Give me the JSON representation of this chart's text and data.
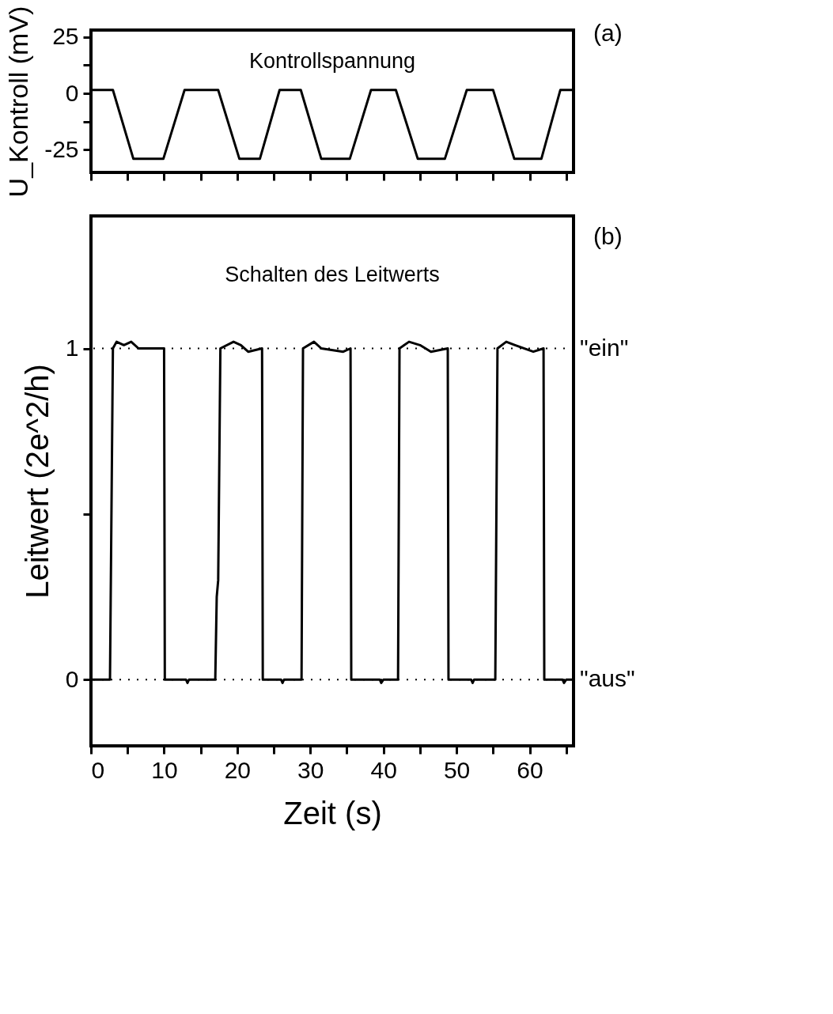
{
  "chart_data": [
    {
      "type": "line",
      "title": "Kontrollspannung",
      "ylabel": "U_Kontroll (mV)",
      "annotations": [
        "(a)"
      ],
      "xlim": [
        0,
        66
      ],
      "ylim": [
        -35,
        28
      ],
      "tick_labels": "y",
      "xticks": [
        0,
        {
          "value": 5,
          "label": null
        },
        {
          "value": 10,
          "label": null
        },
        {
          "value": 15,
          "label": null
        },
        {
          "value": 20,
          "label": null
        },
        {
          "value": 25,
          "label": null
        },
        {
          "value": 30,
          "label": null
        },
        {
          "value": 35,
          "label": null
        },
        {
          "value": 40,
          "label": null
        },
        {
          "value": 45,
          "label": null
        },
        {
          "value": 50,
          "label": null
        },
        {
          "value": 55,
          "label": null
        },
        {
          "value": 60,
          "label": null
        },
        {
          "value": 65,
          "label": null
        }
      ],
      "yticks": [
        -25,
        {
          "value": -12.5,
          "label": null
        },
        0,
        {
          "value": 12.5,
          "label": null
        },
        25
      ],
      "series": [
        {
          "color": "#000000",
          "x": [
            0,
            3.0,
            5.8,
            9.9,
            12.8,
            17.4,
            20.3,
            23.1,
            25.8,
            28.7,
            31.5,
            35.4,
            38.3,
            41.7,
            44.7,
            48.4,
            51.4,
            55.0,
            57.9,
            61.6,
            64.2,
            66
          ],
          "values": [
            1.5,
            1.5,
            -29,
            -29,
            1.5,
            1.5,
            -29,
            -29,
            1.5,
            1.5,
            -29,
            -29,
            1.5,
            1.5,
            -29,
            -29,
            1.5,
            1.5,
            -29,
            -29,
            1.5,
            1.5
          ]
        }
      ]
    },
    {
      "type": "line",
      "title": "Schalten des Leitwerts",
      "ylabel": "Leitwert (2e^2/h)",
      "xlabel": "Zeit (s)",
      "annotations": [
        "(b)"
      ],
      "xlim": [
        0,
        66
      ],
      "ylim": [
        -0.2,
        1.4
      ],
      "xticks": [
        0,
        {
          "value": 5,
          "label": null
        },
        10,
        {
          "value": 15,
          "label": null
        },
        20,
        {
          "value": 25,
          "label": null
        },
        30,
        {
          "value": 35,
          "label": null
        },
        40,
        {
          "value": 45,
          "label": null
        },
        50,
        {
          "value": 55,
          "label": null
        },
        60,
        {
          "value": 65,
          "label": null
        }
      ],
      "yticks": [
        0,
        {
          "value": 0.5,
          "label": null
        },
        1
      ],
      "ref_lines": [
        {
          "axis": "y",
          "value": 1,
          "label": "\"ein\"",
          "line_style": "dotted"
        },
        {
          "axis": "y",
          "value": 0,
          "label": "\"aus\"",
          "line_style": "dotted"
        }
      ],
      "series": [
        {
          "color": "#000000",
          "x": [
            0,
            2.6,
            2.8,
            3.0,
            3.5,
            4.5,
            5.5,
            6.5,
            10.0,
            10.1,
            13.0,
            13.2,
            13.4,
            17.0,
            17.2,
            17.4,
            17.7,
            19.5,
            20.5,
            21.5,
            23.4,
            23.5,
            26.0,
            26.2,
            26.4,
            28.8,
            29.0,
            30.5,
            31.5,
            34.5,
            35.5,
            35.6,
            39.5,
            39.7,
            40.0,
            42.0,
            42.2,
            43.5,
            45.0,
            46.5,
            48.8,
            48.9,
            52.0,
            52.2,
            52.4,
            55.3,
            55.6,
            56.8,
            58.0,
            60.5,
            61.9,
            62.0,
            64.5,
            64.7,
            65.0,
            66
          ],
          "values": [
            0,
            0,
            0.5,
            1,
            1.02,
            1.01,
            1.02,
            1,
            1,
            0,
            0,
            -0.01,
            0,
            0,
            0.25,
            0.3,
            1,
            1.02,
            1.01,
            0.99,
            1,
            0,
            0,
            -0.01,
            0,
            0,
            1,
            1.02,
            1,
            0.99,
            1,
            0,
            0,
            -0.01,
            0,
            0,
            1,
            1.02,
            1.01,
            0.99,
            1,
            0,
            0,
            -0.01,
            0,
            0,
            1,
            1.02,
            1.01,
            0.99,
            1,
            0,
            0,
            -0.01,
            0,
            0
          ]
        }
      ]
    }
  ]
}
